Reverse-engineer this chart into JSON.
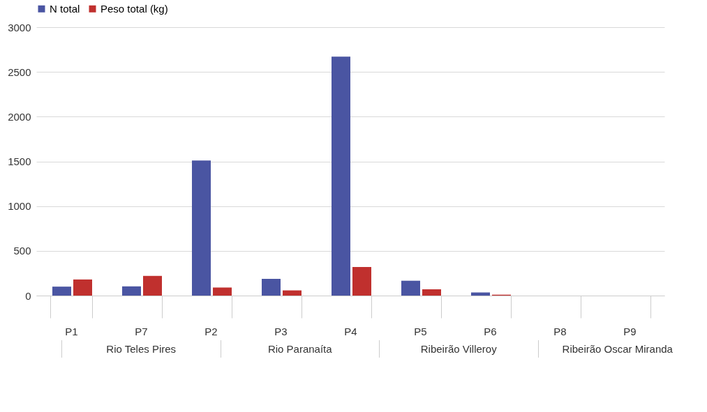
{
  "chart_data": {
    "type": "bar",
    "categories": [
      "P1",
      "P7",
      "P2",
      "P3",
      "P4",
      "P5",
      "P6",
      "P8",
      "P9"
    ],
    "series": [
      {
        "name": "N total",
        "color": "#4a55a2",
        "values": [
          100,
          103,
          1510,
          187,
          2670,
          166,
          35,
          0,
          0
        ]
      },
      {
        "name": "Peso total (kg)",
        "color": "#c0302e",
        "values": [
          180,
          220,
          90,
          58,
          320,
          70,
          10,
          0,
          0
        ]
      }
    ],
    "ylim": [
      0,
      3000
    ],
    "yticks": [
      0,
      500,
      1000,
      1500,
      2000,
      2500,
      3000
    ],
    "grid": "y",
    "legend": "top",
    "annotations": [
      "Rio Teles Pires",
      "Rio Paranaíta",
      "Ribeirão Villeroy",
      "Ribeirão Oscar Miranda"
    ]
  }
}
